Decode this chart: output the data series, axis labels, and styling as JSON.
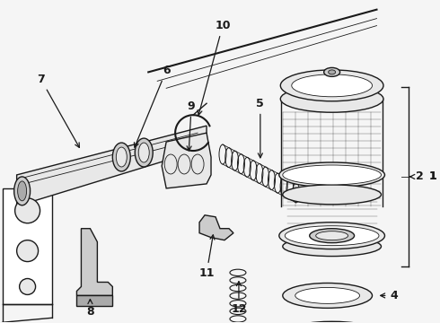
{
  "bg_color": "#f5f5f5",
  "line_color": "#1a1a1a",
  "fig_width": 4.9,
  "fig_height": 3.6,
  "dpi": 100,
  "lw_main": 1.0,
  "lw_thin": 0.6,
  "lw_thick": 1.5
}
